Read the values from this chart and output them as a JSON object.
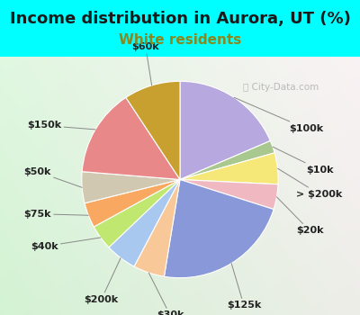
{
  "title": "Income distribution in Aurora, UT (%)",
  "subtitle": "White residents",
  "outer_bg": "#00ffff",
  "chart_bg_left": "#e0f5e0",
  "watermark": "City-Data.com",
  "slices": [
    {
      "label": "$100k",
      "value": 18,
      "color": "#b8a8e0"
    },
    {
      "label": "$10k",
      "value": 2,
      "color": "#a8c890"
    },
    {
      "label": "> $200k",
      "value": 5,
      "color": "#f5e878"
    },
    {
      "label": "$20k",
      "value": 4,
      "color": "#f0b8c0"
    },
    {
      "label": "$125k",
      "value": 22,
      "color": "#8898d8"
    },
    {
      "label": "$30k",
      "value": 5,
      "color": "#f8c898"
    },
    {
      "label": "$200k",
      "value": 5,
      "color": "#a8c8f0"
    },
    {
      "label": "$40k",
      "value": 4,
      "color": "#c0e870"
    },
    {
      "label": "$75k",
      "value": 4,
      "color": "#f8a860"
    },
    {
      "label": "$50k",
      "value": 5,
      "color": "#d0c8b0"
    },
    {
      "label": "$150k",
      "value": 14,
      "color": "#e88888"
    },
    {
      "label": "$60k",
      "value": 9,
      "color": "#c8a030"
    }
  ],
  "title_fontsize": 13,
  "subtitle_fontsize": 11,
  "label_fontsize": 8,
  "label_color": "#222222"
}
